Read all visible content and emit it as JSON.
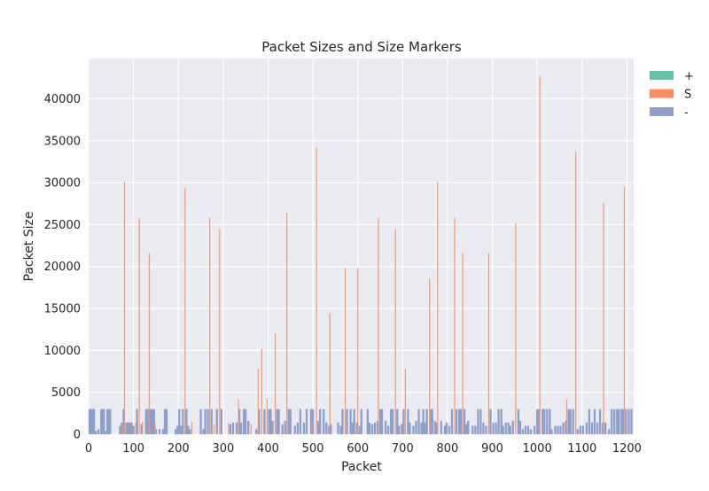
{
  "chart_data": {
    "type": "bar",
    "title": "Packet Sizes and Size Markers",
    "xlabel": "Packet",
    "ylabel": "Packet Size",
    "xlim": [
      0,
      1215
    ],
    "ylim": [
      0,
      44800
    ],
    "x_ticks": [
      "0",
      "100",
      "200",
      "300",
      "400",
      "500",
      "600",
      "700",
      "800",
      "900",
      "1000",
      "1100",
      "1200"
    ],
    "y_ticks": [
      "0",
      "5000",
      "10000",
      "15000",
      "20000",
      "25000",
      "30000",
      "35000",
      "40000"
    ],
    "grid": true,
    "legend_position": "outside-right",
    "legend": [
      "+",
      "S",
      "-"
    ],
    "colors": {
      "+": "#66c2a5",
      "S": "#fc8d62",
      "-": "#8da0cb",
      "background": "#eaeaf2",
      "grid": "#ffffff"
    },
    "series": [
      {
        "name": "+",
        "points": []
      },
      {
        "name": "S",
        "points": [
          [
            76,
            1200
          ],
          [
            80,
            30100
          ],
          [
            105,
            1400
          ],
          [
            113,
            25800
          ],
          [
            120,
            1500
          ],
          [
            135,
            21600
          ],
          [
            148,
            1300
          ],
          [
            215,
            29400
          ],
          [
            230,
            1500
          ],
          [
            270,
            25800
          ],
          [
            280,
            1200
          ],
          [
            292,
            24500
          ],
          [
            312,
            1300
          ],
          [
            334,
            4200
          ],
          [
            362,
            1200
          ],
          [
            378,
            7800
          ],
          [
            386,
            10200
          ],
          [
            398,
            4200
          ],
          [
            416,
            12000
          ],
          [
            442,
            26400
          ],
          [
            498,
            1300
          ],
          [
            508,
            34200
          ],
          [
            538,
            14400
          ],
          [
            572,
            19800
          ],
          [
            600,
            19800
          ],
          [
            646,
            25800
          ],
          [
            684,
            24500
          ],
          [
            706,
            7800
          ],
          [
            760,
            18600
          ],
          [
            778,
            30100
          ],
          [
            816,
            25800
          ],
          [
            834,
            21600
          ],
          [
            892,
            21600
          ],
          [
            952,
            25200
          ],
          [
            1006,
            42700
          ],
          [
            1066,
            4200
          ],
          [
            1086,
            33700
          ],
          [
            1148,
            27600
          ],
          [
            1194,
            29500
          ]
        ]
      },
      {
        "name": "-",
        "points": [
          [
            2,
            3000
          ],
          [
            4,
            3000
          ],
          [
            6,
            3000
          ],
          [
            8,
            3000
          ],
          [
            10,
            3000
          ],
          [
            12,
            3000
          ],
          [
            16,
            400
          ],
          [
            22,
            600
          ],
          [
            28,
            3000
          ],
          [
            30,
            3000
          ],
          [
            34,
            3000
          ],
          [
            38,
            400
          ],
          [
            42,
            3000
          ],
          [
            44,
            3000
          ],
          [
            48,
            3000
          ],
          [
            70,
            1000
          ],
          [
            74,
            1400
          ],
          [
            78,
            3000
          ],
          [
            84,
            1400
          ],
          [
            88,
            1400
          ],
          [
            92,
            1400
          ],
          [
            96,
            1400
          ],
          [
            100,
            1000
          ],
          [
            108,
            3000
          ],
          [
            118,
            1200
          ],
          [
            128,
            3000
          ],
          [
            132,
            3000
          ],
          [
            138,
            3000
          ],
          [
            142,
            3000
          ],
          [
            146,
            3000
          ],
          [
            150,
            600
          ],
          [
            158,
            600
          ],
          [
            166,
            600
          ],
          [
            170,
            3000
          ],
          [
            174,
            3000
          ],
          [
            194,
            600
          ],
          [
            198,
            1000
          ],
          [
            202,
            3000
          ],
          [
            206,
            1000
          ],
          [
            210,
            3000
          ],
          [
            218,
            3000
          ],
          [
            222,
            1000
          ],
          [
            226,
            600
          ],
          [
            250,
            3000
          ],
          [
            256,
            600
          ],
          [
            260,
            3000
          ],
          [
            266,
            3000
          ],
          [
            274,
            3000
          ],
          [
            286,
            3000
          ],
          [
            296,
            3000
          ],
          [
            316,
            1200
          ],
          [
            322,
            1400
          ],
          [
            330,
            1400
          ],
          [
            336,
            3000
          ],
          [
            340,
            1400
          ],
          [
            346,
            3000
          ],
          [
            350,
            3000
          ],
          [
            356,
            1600
          ],
          [
            374,
            600
          ],
          [
            380,
            3000
          ],
          [
            392,
            3000
          ],
          [
            402,
            3000
          ],
          [
            406,
            3000
          ],
          [
            410,
            1600
          ],
          [
            420,
            3000
          ],
          [
            424,
            3000
          ],
          [
            432,
            1200
          ],
          [
            438,
            1600
          ],
          [
            446,
            3000
          ],
          [
            450,
            3000
          ],
          [
            460,
            1000
          ],
          [
            466,
            1400
          ],
          [
            472,
            3000
          ],
          [
            480,
            1400
          ],
          [
            486,
            3000
          ],
          [
            496,
            3000
          ],
          [
            500,
            3000
          ],
          [
            512,
            1600
          ],
          [
            516,
            3000
          ],
          [
            524,
            3000
          ],
          [
            530,
            1400
          ],
          [
            536,
            1000
          ],
          [
            540,
            1200
          ],
          [
            556,
            1400
          ],
          [
            562,
            1000
          ],
          [
            566,
            3000
          ],
          [
            576,
            3000
          ],
          [
            584,
            3000
          ],
          [
            588,
            1400
          ],
          [
            592,
            3000
          ],
          [
            598,
            1400
          ],
          [
            604,
            1000
          ],
          [
            608,
            3000
          ],
          [
            622,
            3000
          ],
          [
            626,
            1400
          ],
          [
            632,
            1200
          ],
          [
            638,
            1400
          ],
          [
            644,
            1600
          ],
          [
            650,
            3000
          ],
          [
            654,
            3000
          ],
          [
            662,
            1600
          ],
          [
            668,
            1000
          ],
          [
            674,
            3000
          ],
          [
            678,
            3000
          ],
          [
            688,
            3000
          ],
          [
            692,
            1000
          ],
          [
            698,
            1200
          ],
          [
            702,
            3000
          ],
          [
            712,
            3000
          ],
          [
            716,
            1400
          ],
          [
            724,
            1000
          ],
          [
            730,
            1600
          ],
          [
            736,
            3000
          ],
          [
            742,
            1400
          ],
          [
            746,
            3000
          ],
          [
            750,
            1400
          ],
          [
            754,
            3000
          ],
          [
            762,
            3000
          ],
          [
            766,
            3000
          ],
          [
            772,
            1600
          ],
          [
            776,
            1400
          ],
          [
            786,
            1600
          ],
          [
            794,
            1000
          ],
          [
            798,
            1400
          ],
          [
            804,
            1000
          ],
          [
            810,
            3000
          ],
          [
            820,
            3000
          ],
          [
            826,
            3000
          ],
          [
            830,
            3000
          ],
          [
            838,
            3000
          ],
          [
            842,
            1200
          ],
          [
            846,
            1600
          ],
          [
            856,
            1000
          ],
          [
            862,
            1000
          ],
          [
            868,
            3000
          ],
          [
            874,
            3000
          ],
          [
            880,
            1400
          ],
          [
            886,
            1000
          ],
          [
            896,
            3000
          ],
          [
            902,
            1400
          ],
          [
            908,
            1400
          ],
          [
            914,
            3000
          ],
          [
            920,
            3000
          ],
          [
            924,
            1000
          ],
          [
            930,
            1400
          ],
          [
            936,
            1400
          ],
          [
            940,
            1000
          ],
          [
            946,
            1600
          ],
          [
            958,
            3000
          ],
          [
            962,
            1600
          ],
          [
            968,
            600
          ],
          [
            974,
            1000
          ],
          [
            980,
            1000
          ],
          [
            986,
            600
          ],
          [
            994,
            1000
          ],
          [
            1000,
            3000
          ],
          [
            1004,
            3000
          ],
          [
            1012,
            3000
          ],
          [
            1016,
            3000
          ],
          [
            1022,
            3000
          ],
          [
            1028,
            3000
          ],
          [
            1032,
            600
          ],
          [
            1040,
            1000
          ],
          [
            1046,
            1000
          ],
          [
            1052,
            1000
          ],
          [
            1058,
            1400
          ],
          [
            1064,
            1600
          ],
          [
            1070,
            3000
          ],
          [
            1074,
            3000
          ],
          [
            1080,
            3000
          ],
          [
            1090,
            600
          ],
          [
            1096,
            1000
          ],
          [
            1102,
            1000
          ],
          [
            1110,
            1400
          ],
          [
            1116,
            3000
          ],
          [
            1122,
            1400
          ],
          [
            1128,
            3000
          ],
          [
            1134,
            1400
          ],
          [
            1140,
            3000
          ],
          [
            1146,
            1400
          ],
          [
            1152,
            1400
          ],
          [
            1160,
            600
          ],
          [
            1166,
            3000
          ],
          [
            1172,
            3000
          ],
          [
            1178,
            3000
          ],
          [
            1182,
            3000
          ],
          [
            1188,
            3000
          ],
          [
            1192,
            3000
          ],
          [
            1198,
            3000
          ],
          [
            1204,
            3000
          ],
          [
            1210,
            3000
          ]
        ]
      }
    ]
  }
}
